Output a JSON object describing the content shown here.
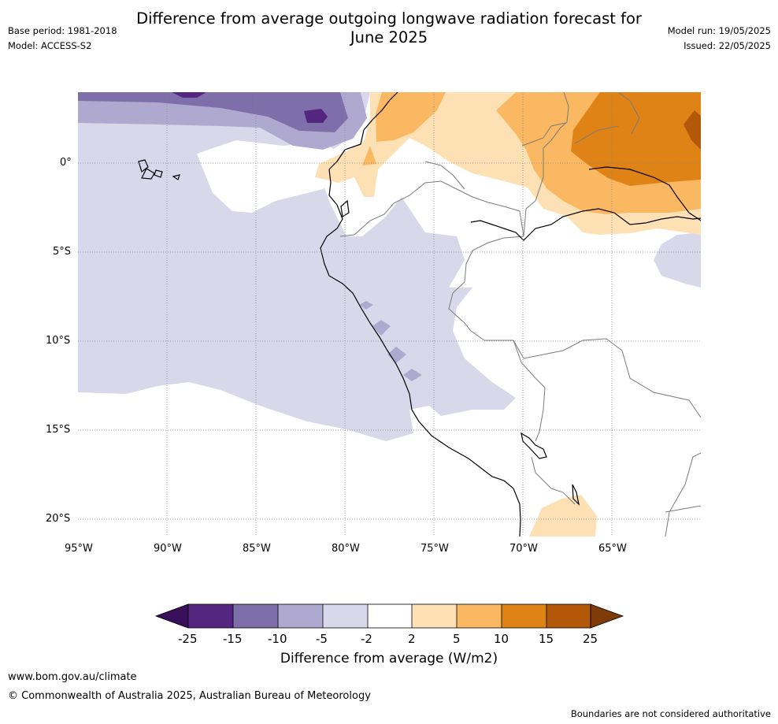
{
  "header": {
    "title_line1": "Difference from average outgoing longwave radiation forecast for",
    "title_line2": "June 2025",
    "base_period": "Base period: 1981-2018",
    "model": "Model: ACCESS-S2",
    "model_run": "Model run: 19/05/2025",
    "issued": "Issued: 22/05/2025"
  },
  "axes": {
    "lat_labels": [
      "0°",
      "5°S",
      "10°S",
      "15°S",
      "20°S"
    ],
    "lon_labels": [
      "95°W",
      "90°W",
      "85°W",
      "80°W",
      "75°W",
      "70°W",
      "65°W"
    ]
  },
  "colorbar": {
    "title": "Difference from average (W/m2)",
    "tick_labels": [
      "-25",
      "-15",
      "-10",
      "-5",
      "-2",
      "2",
      "5",
      "10",
      "15",
      "25"
    ],
    "colors": {
      "below_min": "#3a0f5a",
      "c1": "#54267f",
      "c2": "#7e6eaa",
      "c3": "#b0a9cf",
      "c4": "#d8d8ea",
      "c5": "#ffffff",
      "c6": "#fde0b4",
      "c7": "#fbb862",
      "c8": "#e08317",
      "c9": "#b35808",
      "above_max": "#7f3b08"
    }
  },
  "footer": {
    "website": "www.bom.gov.au/climate",
    "copyright": "© Commonwealth of Australia 2025, Australian Bureau of Meteorology",
    "disclaimer": "Boundaries are not considered authoritative"
  }
}
